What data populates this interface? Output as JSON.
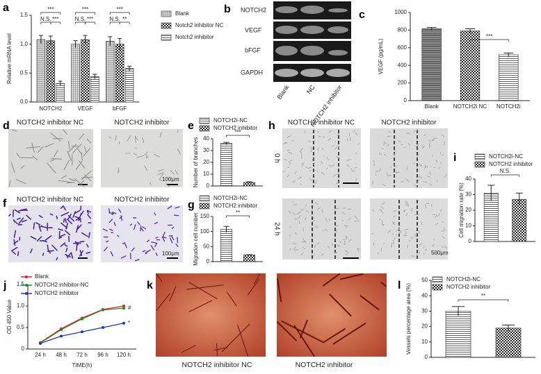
{
  "chart_data": [
    {
      "type": "bar",
      "letter": "a",
      "ylabel": "Relative mRNA level",
      "categories": [
        "NOTCH2",
        "VEGF",
        "bFGF"
      ],
      "series": [
        {
          "name": "Blank",
          "pattern": "grid",
          "values": [
            1.08,
            1.0,
            1.05
          ],
          "errors": [
            0.07,
            0.06,
            0.08
          ]
        },
        {
          "name": "Notch2 inhibitor NC",
          "pattern": "checker",
          "values": [
            1.06,
            1.08,
            1.0
          ],
          "errors": [
            0.08,
            0.07,
            0.1
          ]
        },
        {
          "name": "Notch2 inhibitor",
          "pattern": "hlines",
          "values": [
            0.32,
            0.44,
            0.58
          ],
          "errors": [
            0.04,
            0.04,
            0.04
          ]
        }
      ],
      "ylim": [
        0,
        1.5
      ],
      "yticks": [
        {
          "value": 0,
          "label": "0.0"
        },
        0.5,
        {
          "value": 1,
          "label": "1.0"
        },
        1.5
      ],
      "annotations": [
        "***",
        "N.S.",
        "***",
        "***",
        "N.S.",
        "***",
        "***",
        "N.S.",
        "**"
      ],
      "legend": true
    },
    {
      "type": "bar",
      "letter": "c",
      "ylabel": "VEGF (pg/mL)",
      "categories": [
        "Blank",
        "NOTCH2i NC",
        "NOTCH2i"
      ],
      "values": [
        815,
        790,
        520
      ],
      "errors": [
        15,
        25,
        20
      ],
      "patterns": [
        "hdense",
        "checker",
        "hlines"
      ],
      "ylim": [
        0,
        1000
      ],
      "yticks": [
        0,
        200,
        400,
        600,
        800,
        1000
      ],
      "annotations": [
        "***"
      ],
      "legend": false
    },
    {
      "type": "bar",
      "letter": "e",
      "ylabel": "Number of branches",
      "categories": [
        "NOTCH2i-NC",
        "NOTCH2 inhibitor"
      ],
      "values": [
        36,
        3
      ],
      "errors": [
        1,
        0.5
      ],
      "patterns": [
        "hlines",
        "checker"
      ],
      "ylim": [
        0,
        40
      ],
      "yticks": [
        0,
        10,
        20,
        30,
        40
      ],
      "annotations": [
        "***"
      ],
      "legend": true
    },
    {
      "type": "bar",
      "letter": "g",
      "ylabel": "Migration cell number",
      "categories": [
        "NOTCH2i-NC",
        "NOTCH2 inhibitor"
      ],
      "values": [
        107,
        22
      ],
      "errors": [
        10,
        1
      ],
      "patterns": [
        "hlines",
        "checker"
      ],
      "ylim": [
        0,
        150
      ],
      "yticks": [
        0,
        50,
        100,
        150
      ],
      "annotations": [
        "**"
      ],
      "legend": true
    },
    {
      "type": "bar",
      "letter": "i",
      "ylabel": "Cell migration rate (%)",
      "categories": [
        "NOTCH2i-NC",
        "NOTCH2 inhibitor"
      ],
      "values": [
        31,
        27
      ],
      "errors": [
        5,
        4
      ],
      "patterns": [
        "hlines",
        "checker"
      ],
      "ylim": [
        0,
        40
      ],
      "yticks": [
        0,
        10,
        20,
        30,
        40
      ],
      "annotations": [
        "N.S."
      ],
      "legend": true
    },
    {
      "type": "line",
      "letter": "j",
      "ylabel": "OD 450 Value",
      "xlabel": "TIME(h)",
      "categories": [
        "24 h",
        "48 h",
        "72 h",
        "96 h",
        "120 h"
      ],
      "series": [
        {
          "name": "Blank",
          "color": "#e02020",
          "values": [
            0.15,
            0.47,
            0.72,
            0.92,
            1.0
          ]
        },
        {
          "name": "NOTCH2 inhibitor-NC",
          "color": "#1e8a2e",
          "values": [
            0.14,
            0.45,
            0.7,
            0.91,
            0.95
          ]
        },
        {
          "name": "NOTCH2 inhibitor",
          "color": "#2233bb",
          "values": [
            0.13,
            0.3,
            0.4,
            0.5,
            0.6
          ]
        }
      ],
      "ylim": [
        0,
        1.5
      ],
      "yticks": [
        0,
        0.5,
        {
          "value": 1,
          "label": "1.0"
        },
        1.5
      ],
      "annotations": [
        "#",
        "*"
      ],
      "legend": true
    },
    {
      "type": "bar",
      "letter": "l",
      "ylabel": "Vessels percentage area (%)",
      "categories": [
        "NOTCH2i-NC",
        "NOTCH2 inhibitor"
      ],
      "values": [
        30,
        19
      ],
      "errors": [
        3,
        2
      ],
      "patterns": [
        "hlines",
        "checker"
      ],
      "ylim": [
        0,
        50
      ],
      "yticks": [
        0,
        10,
        20,
        30,
        40,
        50
      ],
      "annotations": [
        "**"
      ],
      "legend": true
    }
  ],
  "blot": {
    "letter": "b",
    "proteins": [
      "NOTCH2",
      "VEGF",
      "bFGF",
      "GAPDH"
    ],
    "lanes": [
      "Blank",
      "NC",
      "NOTCH2 inhibitor"
    ]
  },
  "image_panels": [
    {
      "letter": "d",
      "titles": [
        "NOTCH2 inhibitor NC",
        "NOTCH2 inhibitor"
      ],
      "scale_bar": "100μm"
    },
    {
      "letter": "f",
      "titles": [
        "NOTCH2 inhibitor NC",
        "NOTCH2 inhibitor"
      ],
      "scale_bar": "100μm"
    },
    {
      "letter": "h",
      "titles": [
        "NOTCH2 inhibitor NC",
        "NOTCH2 inhibitor"
      ],
      "rows": [
        "0 h",
        "24 h"
      ],
      "scale_bar": "500μm"
    },
    {
      "letter": "k",
      "captions": [
        "NOTCH2 inhibitor NC",
        "NOTCH2 inhibitor"
      ]
    }
  ]
}
